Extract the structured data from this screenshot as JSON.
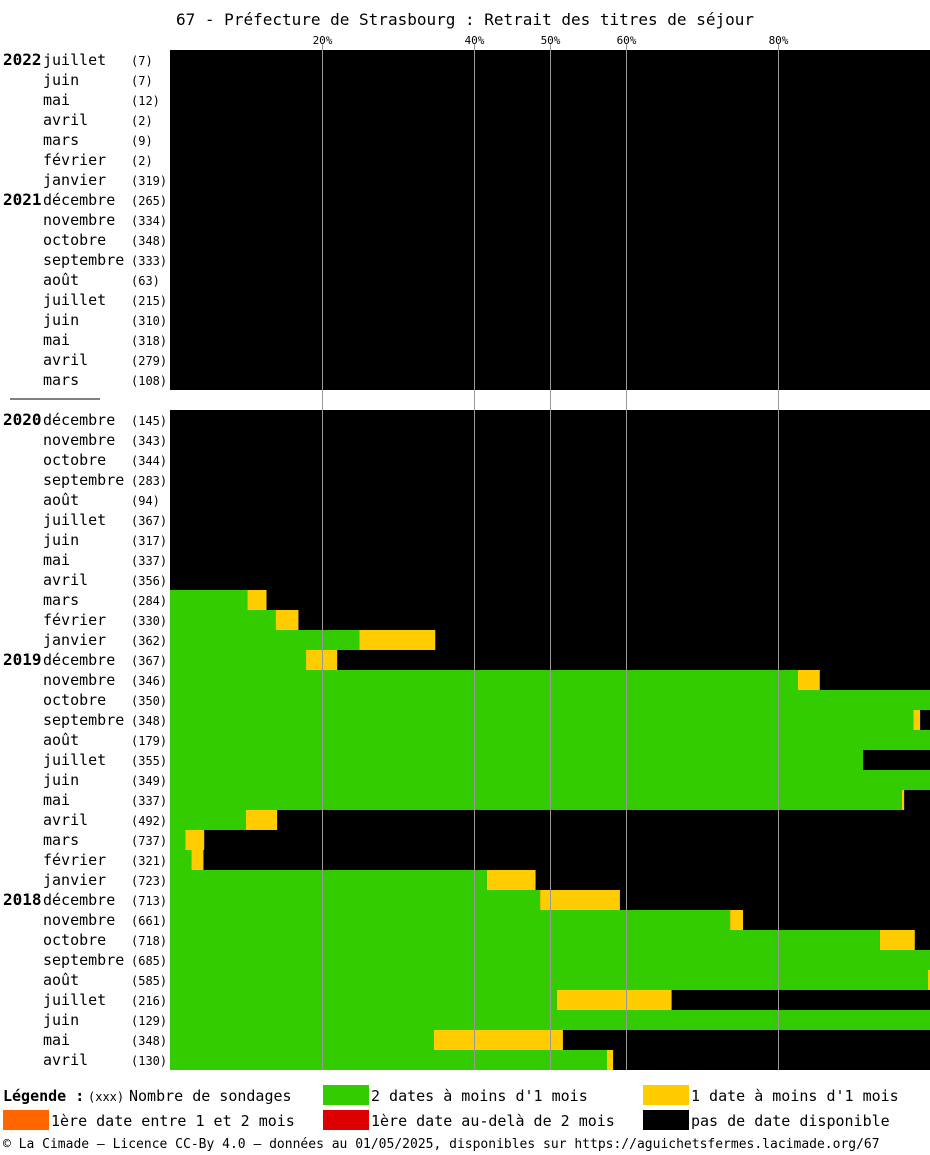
{
  "title": "67 - Préfecture de Strasbourg : Retrait des titres de séjour",
  "colors": {
    "green": "#33cc00",
    "yellow": "#ffcc00",
    "orange": "#ff6600",
    "red": "#dd0000",
    "black": "#000000",
    "grid": "#999999"
  },
  "chart_data": {
    "type": "bar",
    "stacked": true,
    "orientation": "horizontal",
    "xlim": [
      0,
      100
    ],
    "x_ticks": [
      {
        "value": 20,
        "label": "20%"
      },
      {
        "value": 40,
        "label": "40%"
      },
      {
        "value": 50,
        "label": "50%"
      },
      {
        "value": 60,
        "label": "60%"
      },
      {
        "value": 80,
        "label": "80%"
      }
    ],
    "series": [
      {
        "key": "green",
        "name": "2 dates à moins d'1 mois"
      },
      {
        "key": "yellow",
        "name": "1 date à moins d'1 mois"
      },
      {
        "key": "orange",
        "name": "1ère date entre 1 et 2 mois"
      },
      {
        "key": "red",
        "name": "1ère date au-delà de 2 mois"
      },
      {
        "key": "black",
        "name": "pas de date disponible"
      }
    ],
    "groups": [
      {
        "rows": [
          {
            "year": "2022",
            "month": "juillet",
            "count": "(7)",
            "green": 0,
            "yellow": 0
          },
          {
            "month": "juin",
            "count": "(7)",
            "green": 0,
            "yellow": 0
          },
          {
            "month": "mai",
            "count": "(12)",
            "green": 0,
            "yellow": 0
          },
          {
            "month": "avril",
            "count": "(2)",
            "green": 0,
            "yellow": 0
          },
          {
            "month": "mars",
            "count": "(9)",
            "green": 0,
            "yellow": 0
          },
          {
            "month": "février",
            "count": "(2)",
            "green": 0,
            "yellow": 0
          },
          {
            "month": "janvier",
            "count": "(319)",
            "green": 0,
            "yellow": 0
          },
          {
            "year": "2021",
            "month": "décembre",
            "count": "(265)",
            "green": 0,
            "yellow": 0
          },
          {
            "month": "novembre",
            "count": "(334)",
            "green": 0,
            "yellow": 0
          },
          {
            "month": "octobre",
            "count": "(348)",
            "green": 0,
            "yellow": 0
          },
          {
            "month": "septembre",
            "count": "(333)",
            "green": 0,
            "yellow": 0
          },
          {
            "month": "août",
            "count": "(63)",
            "green": 0,
            "yellow": 0
          },
          {
            "month": "juillet",
            "count": "(215)",
            "green": 0,
            "yellow": 0
          },
          {
            "month": "juin",
            "count": "(310)",
            "green": 0,
            "yellow": 0
          },
          {
            "month": "mai",
            "count": "(318)",
            "green": 0,
            "yellow": 0
          },
          {
            "month": "avril",
            "count": "(279)",
            "green": 0,
            "yellow": 0
          },
          {
            "month": "mars",
            "count": "(108)",
            "green": 0,
            "yellow": 0
          }
        ]
      },
      {
        "rows": [
          {
            "year": "2020",
            "month": "décembre",
            "count": "(145)",
            "green": 0,
            "yellow": 0
          },
          {
            "month": "novembre",
            "count": "(343)",
            "green": 0,
            "yellow": 0
          },
          {
            "month": "octobre",
            "count": "(344)",
            "green": 0,
            "yellow": 0
          },
          {
            "month": "septembre",
            "count": "(283)",
            "green": 0,
            "yellow": 0
          },
          {
            "month": "août",
            "count": "(94)",
            "green": 0,
            "yellow": 0
          },
          {
            "month": "juillet",
            "count": "(367)",
            "green": 0,
            "yellow": 0
          },
          {
            "month": "juin",
            "count": "(317)",
            "green": 0,
            "yellow": 0
          },
          {
            "month": "mai",
            "count": "(337)",
            "green": 0,
            "yellow": 0
          },
          {
            "month": "avril",
            "count": "(356)",
            "green": 0,
            "yellow": 0
          },
          {
            "month": "mars",
            "count": "(284)",
            "green": 10.2,
            "yellow": 2.5
          },
          {
            "month": "février",
            "count": "(330)",
            "green": 13.9,
            "yellow": 3.0
          },
          {
            "month": "janvier",
            "count": "(362)",
            "green": 24.9,
            "yellow": 10.0
          },
          {
            "year": "2019",
            "month": "décembre",
            "count": "(367)",
            "green": 17.9,
            "yellow": 4.1
          },
          {
            "month": "novembre",
            "count": "(346)",
            "green": 82.6,
            "yellow": 2.9
          },
          {
            "month": "octobre",
            "count": "(350)",
            "green": 100,
            "yellow": 0
          },
          {
            "month": "septembre",
            "count": "(348)",
            "green": 97.8,
            "yellow": 0.9
          },
          {
            "month": "août",
            "count": "(179)",
            "green": 100,
            "yellow": 0
          },
          {
            "month": "juillet",
            "count": "(355)",
            "green": 91.2,
            "yellow": 0
          },
          {
            "month": "juin",
            "count": "(349)",
            "green": 100,
            "yellow": 0
          },
          {
            "month": "mai",
            "count": "(337)",
            "green": 96.3,
            "yellow": 0.3
          },
          {
            "month": "avril",
            "count": "(492)",
            "green": 10.0,
            "yellow": 4.1
          },
          {
            "month": "mars",
            "count": "(737)",
            "green": 2.0,
            "yellow": 2.5
          },
          {
            "month": "février",
            "count": "(321)",
            "green": 2.8,
            "yellow": 1.6
          },
          {
            "month": "janvier",
            "count": "(723)",
            "green": 41.7,
            "yellow": 6.4
          },
          {
            "year": "2018",
            "month": "décembre",
            "count": "(713)",
            "green": 48.7,
            "yellow": 10.5
          },
          {
            "month": "novembre",
            "count": "(661)",
            "green": 73.7,
            "yellow": 1.7
          },
          {
            "month": "octobre",
            "count": "(718)",
            "green": 93.4,
            "yellow": 4.6
          },
          {
            "month": "septembre",
            "count": "(685)",
            "green": 100,
            "yellow": 0
          },
          {
            "month": "août",
            "count": "(585)",
            "green": 99.7,
            "yellow": 0.3
          },
          {
            "month": "juillet",
            "count": "(216)",
            "green": 50.9,
            "yellow": 15.1
          },
          {
            "month": "juin",
            "count": "(129)",
            "green": 100,
            "yellow": 0
          },
          {
            "month": "mai",
            "count": "(348)",
            "green": 34.7,
            "yellow": 17.0
          },
          {
            "month": "avril",
            "count": "(130)",
            "green": 57.5,
            "yellow": 0.8
          }
        ]
      }
    ]
  },
  "legend": {
    "title": "Légende :",
    "count_hint": "(xxx)",
    "count_label": "Nombre de sondages",
    "items": [
      {
        "key": "green",
        "label": "2 dates à moins d'1 mois"
      },
      {
        "key": "yellow",
        "label": "1 date à moins d'1 mois"
      },
      {
        "key": "orange",
        "label": "1ère date entre 1 et 2 mois"
      },
      {
        "key": "red",
        "label": "1ère date au-delà de 2 mois"
      },
      {
        "key": "black",
        "label": "pas de date disponible"
      }
    ]
  },
  "footer": "© La Cimade — Licence CC-By 4.0 — données au 01/05/2025, disponibles sur https://aguichetsfermes.lacimade.org/67"
}
